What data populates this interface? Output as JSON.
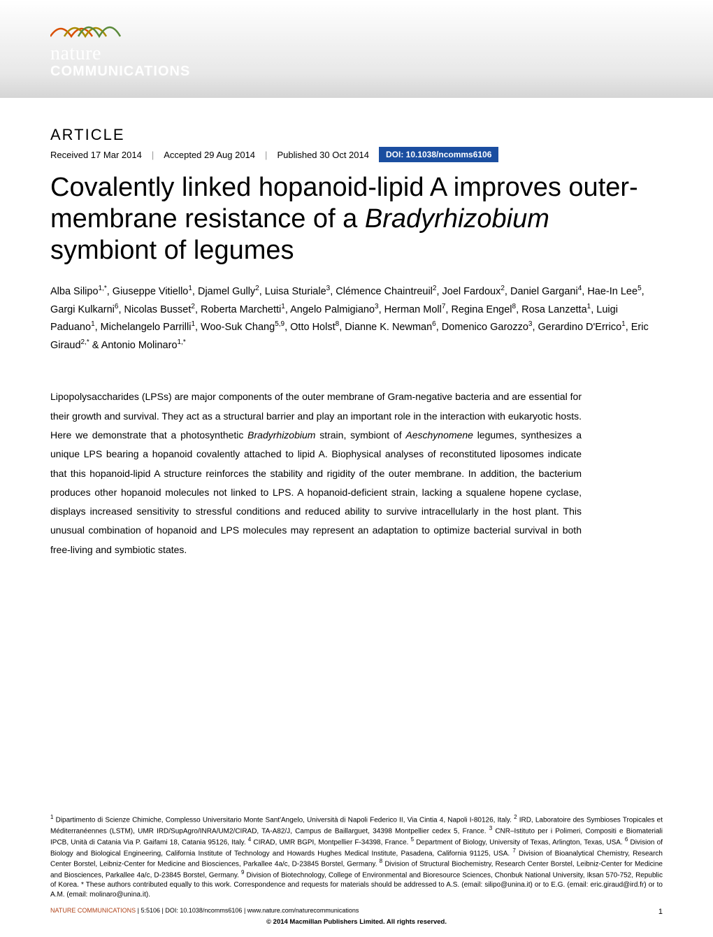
{
  "journal": {
    "logo_top": "nature",
    "logo_bottom": "COMMUNICATIONS",
    "wave_colors": [
      "#d94f00",
      "#a88b00",
      "#5a8a3a"
    ]
  },
  "article": {
    "label": "ARTICLE",
    "received": "Received 17 Mar 2014",
    "accepted": "Accepted 29 Aug 2014",
    "published": "Published 30 Oct 2014",
    "doi": "DOI: 10.1038/ncomms6106",
    "title_pre": "Covalently linked hopanoid-lipid A improves outer-membrane resistance of a ",
    "title_italic": "Bradyrhizobium",
    "title_post": " symbiont of legumes"
  },
  "authors_html": "Alba Silipo<sup>1,*</sup>, Giuseppe Vitiello<sup>1</sup>, Djamel Gully<sup>2</sup>, Luisa Sturiale<sup>3</sup>, Clémence Chaintreuil<sup>2</sup>, Joel Fardoux<sup>2</sup>, Daniel Gargani<sup>4</sup>, Hae-In Lee<sup>5</sup>, Gargi Kulkarni<sup>6</sup>, Nicolas Busset<sup>2</sup>, Roberta Marchetti<sup>1</sup>, Angelo Palmigiano<sup>3</sup>, Herman Moll<sup>7</sup>, Regina Engel<sup>8</sup>, Rosa Lanzetta<sup>1</sup>, Luigi Paduano<sup>1</sup>, Michelangelo Parrilli<sup>1</sup>, Woo-Suk Chang<sup>5,9</sup>, Otto Holst<sup>8</sup>, Dianne K. Newman<sup>6</sup>, Domenico Garozzo<sup>3</sup>, Gerardino D'Errico<sup>1</sup>, Eric Giraud<sup>2,*</sup> & Antonio Molinaro<sup>1,*</sup>",
  "abstract": {
    "p1": "Lipopolysaccharides (LPSs) are major components of the outer membrane of Gram-negative bacteria and are essential for their growth and survival. They act as a structural barrier and play an important role in the interaction with eukaryotic hosts. Here we demonstrate that a photosynthetic ",
    "i1": "Bradyrhizobium",
    "p2": " strain, symbiont of ",
    "i2": "Aeschynomene",
    "p3": " legumes, synthesizes a unique LPS bearing a hopanoid covalently attached to lipid A. Biophysical analyses of reconstituted liposomes indicate that this hopanoid-lipid A structure reinforces the stability and rigidity of the outer membrane. In addition, the bacterium produces other hopanoid molecules not linked to LPS. A hopanoid-deficient strain, lacking a squalene hopene cyclase, displays increased sensitivity to stressful conditions and reduced ability to survive intracellularly in the host plant. This unusual combination of hopanoid and LPS molecules may represent an adaptation to optimize bacterial survival in both free-living and symbiotic states."
  },
  "affiliations_html": "<sup>1</sup> Dipartimento di Scienze Chimiche, Complesso Universitario Monte Sant'Angelo, Università di Napoli Federico II, Via Cintia 4, Napoli I-80126, Italy. <sup>2</sup> IRD, Laboratoire des Symbioses Tropicales et Méditerranéennes (LSTM), UMR IRD/SupAgro/INRA/UM2/CIRAD, TA-A82/J, Campus de Baillarguet, 34398 Montpellier cedex 5, France. <sup>3</sup> CNR–Istituto per i Polimeri, Compositi e Biomateriali IPCB, Unità di Catania Via P. Gaifami 18, Catania 95126, Italy. <sup>4</sup> CIRAD, UMR BGPI, Montpellier F-34398, France. <sup>5</sup> Department of Biology, University of Texas, Arlington, Texas, USA. <sup>6</sup> Division of Biology and Biological Engineering, California Institute of Technology and Howards Hughes Medical Institute, Pasadena, California 91125, USA. <sup>7</sup> Division of Bioanalytical Chemistry, Research Center Borstel, Leibniz-Center for Medicine and Biosciences, Parkallee 4a/c, D-23845 Borstel, Germany. <sup>8</sup> Division of Structural Biochemistry, Research Center Borstel, Leibniz-Center for Medicine and Biosciences, Parkallee 4a/c, D-23845 Borstel, Germany. <sup>9</sup> Division of Biotechnology, College of Environmental and Bioresource Sciences, Chonbuk National University, Iksan 570-752, Republic of Korea. * These authors contributed equally to this work. Correspondence and requests for materials should be addressed to A.S. (email: silipo@unina.it) or to E.G. (email: eric.giraud@ird.fr) or to A.M. (email: molinaro@unina.it).",
  "footer": {
    "citation_colored": "NATURE COMMUNICATIONS",
    "citation_rest": " | 5:5106 | DOI: 10.1038/ncomms6106 | www.nature.com/naturecommunications",
    "copyright": "© 2014 Macmillan Publishers Limited. All rights reserved.",
    "page": "1"
  },
  "colors": {
    "doi_bg": "#1b4ea0",
    "citation_color": "#b0441a",
    "header_grad_top": "#ffffff",
    "header_grad_bottom": "#d5d5d5"
  }
}
